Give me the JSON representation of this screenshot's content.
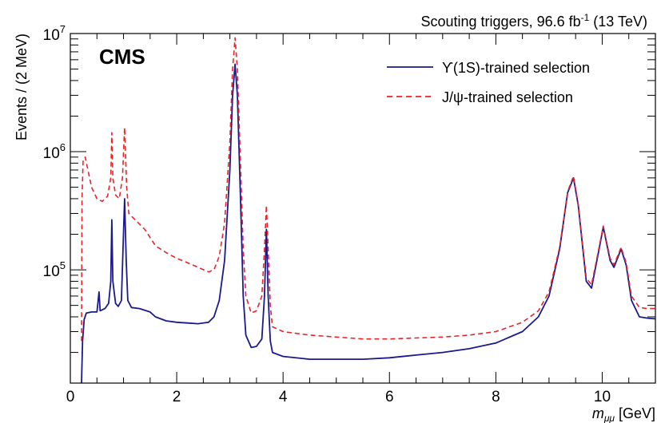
{
  "header": {
    "right_text": "Scouting triggers, 96.6 fb",
    "right_superscript": "-1",
    "right_suffix": " (13 TeV)"
  },
  "experiment_label": "CMS",
  "colors": {
    "upsilon": "#1a1a8c",
    "jpsi": "#e8242a",
    "axis": "#000000"
  },
  "chart_data": {
    "type": "line",
    "xlabel": "m_μμ [GeV]",
    "ylabel": "Events / (2 MeV)",
    "x_ticks": [
      "0",
      "2",
      "4",
      "6",
      "8",
      "10"
    ],
    "y_ticks": [
      "10^5",
      "10^6",
      "10^7"
    ],
    "xlim": [
      0,
      11
    ],
    "ylim": [
      11000,
      10000000
    ],
    "yscale": "log",
    "legend": {
      "position": "top-right"
    },
    "series": [
      {
        "name": "ϒ(1S)-trained selection",
        "style": "solid",
        "points": [
          [
            0.21,
            11000
          ],
          [
            0.23,
            25000
          ],
          [
            0.26,
            38000
          ],
          [
            0.3,
            43000
          ],
          [
            0.4,
            44000
          ],
          [
            0.5,
            44000
          ],
          [
            0.54,
            65000
          ],
          [
            0.56,
            45000
          ],
          [
            0.65,
            47000
          ],
          [
            0.72,
            52000
          ],
          [
            0.76,
            80000
          ],
          [
            0.78,
            265000
          ],
          [
            0.8,
            80000
          ],
          [
            0.85,
            52000
          ],
          [
            0.9,
            49000
          ],
          [
            0.96,
            55000
          ],
          [
            0.99,
            150000
          ],
          [
            1.02,
            400000
          ],
          [
            1.05,
            120000
          ],
          [
            1.08,
            55000
          ],
          [
            1.15,
            48000
          ],
          [
            1.3,
            47000
          ],
          [
            1.5,
            44000
          ],
          [
            1.6,
            40000
          ],
          [
            1.8,
            37000
          ],
          [
            2.0,
            36000
          ],
          [
            2.2,
            35500
          ],
          [
            2.4,
            35000
          ],
          [
            2.6,
            36000
          ],
          [
            2.7,
            40000
          ],
          [
            2.8,
            55000
          ],
          [
            2.9,
            120000
          ],
          [
            3.0,
            700000
          ],
          [
            3.05,
            3000000
          ],
          [
            3.097,
            5500000
          ],
          [
            3.14,
            3000000
          ],
          [
            3.2,
            400000
          ],
          [
            3.25,
            60000
          ],
          [
            3.3,
            28000
          ],
          [
            3.4,
            22000
          ],
          [
            3.5,
            22500
          ],
          [
            3.6,
            26000
          ],
          [
            3.65,
            60000
          ],
          [
            3.686,
            220000
          ],
          [
            3.72,
            60000
          ],
          [
            3.76,
            25000
          ],
          [
            3.8,
            20000
          ],
          [
            4.0,
            18500
          ],
          [
            4.5,
            17500
          ],
          [
            5.0,
            17500
          ],
          [
            5.5,
            17500
          ],
          [
            6.0,
            18000
          ],
          [
            6.5,
            19000
          ],
          [
            7.0,
            20000
          ],
          [
            7.5,
            21500
          ],
          [
            8.0,
            24000
          ],
          [
            8.5,
            30000
          ],
          [
            8.8,
            40000
          ],
          [
            9.0,
            60000
          ],
          [
            9.2,
            150000
          ],
          [
            9.35,
            450000
          ],
          [
            9.46,
            600000
          ],
          [
            9.55,
            350000
          ],
          [
            9.7,
            80000
          ],
          [
            9.8,
            70000
          ],
          [
            9.9,
            120000
          ],
          [
            10.02,
            230000
          ],
          [
            10.15,
            120000
          ],
          [
            10.22,
            105000
          ],
          [
            10.355,
            150000
          ],
          [
            10.45,
            110000
          ],
          [
            10.55,
            55000
          ],
          [
            10.7,
            40000
          ],
          [
            10.85,
            39000
          ],
          [
            11.0,
            38500
          ]
        ]
      },
      {
        "name": "J/ψ-trained selection",
        "style": "dashed",
        "points": [
          [
            0.21,
            25000
          ],
          [
            0.22,
            400000
          ],
          [
            0.24,
            850000
          ],
          [
            0.28,
            900000
          ],
          [
            0.33,
            700000
          ],
          [
            0.4,
            500000
          ],
          [
            0.5,
            400000
          ],
          [
            0.6,
            380000
          ],
          [
            0.7,
            420000
          ],
          [
            0.76,
            600000
          ],
          [
            0.78,
            1450000
          ],
          [
            0.8,
            600000
          ],
          [
            0.85,
            430000
          ],
          [
            0.92,
            400000
          ],
          [
            0.98,
            600000
          ],
          [
            1.02,
            1600000
          ],
          [
            1.06,
            500000
          ],
          [
            1.1,
            300000
          ],
          [
            1.2,
            270000
          ],
          [
            1.4,
            220000
          ],
          [
            1.6,
            160000
          ],
          [
            1.8,
            140000
          ],
          [
            2.0,
            125000
          ],
          [
            2.2,
            115000
          ],
          [
            2.4,
            105000
          ],
          [
            2.6,
            96000
          ],
          [
            2.7,
            100000
          ],
          [
            2.8,
            130000
          ],
          [
            2.9,
            250000
          ],
          [
            3.0,
            1200000
          ],
          [
            3.05,
            5000000
          ],
          [
            3.097,
            9200000
          ],
          [
            3.14,
            5000000
          ],
          [
            3.2,
            800000
          ],
          [
            3.25,
            150000
          ],
          [
            3.3,
            60000
          ],
          [
            3.4,
            43000
          ],
          [
            3.5,
            45000
          ],
          [
            3.6,
            60000
          ],
          [
            3.65,
            150000
          ],
          [
            3.686,
            350000
          ],
          [
            3.72,
            150000
          ],
          [
            3.76,
            50000
          ],
          [
            3.8,
            33000
          ],
          [
            4.0,
            30000
          ],
          [
            4.5,
            28000
          ],
          [
            5.0,
            27000
          ],
          [
            5.5,
            26000
          ],
          [
            6.0,
            26000
          ],
          [
            6.5,
            26500
          ],
          [
            7.0,
            27000
          ],
          [
            7.5,
            28000
          ],
          [
            8.0,
            30000
          ],
          [
            8.5,
            36000
          ],
          [
            8.8,
            45000
          ],
          [
            9.0,
            65000
          ],
          [
            9.2,
            155000
          ],
          [
            9.35,
            460000
          ],
          [
            9.46,
            620000
          ],
          [
            9.55,
            360000
          ],
          [
            9.7,
            85000
          ],
          [
            9.8,
            75000
          ],
          [
            9.9,
            125000
          ],
          [
            10.02,
            235000
          ],
          [
            10.15,
            125000
          ],
          [
            10.22,
            110000
          ],
          [
            10.355,
            155000
          ],
          [
            10.45,
            115000
          ],
          [
            10.55,
            60000
          ],
          [
            10.7,
            48000
          ],
          [
            10.85,
            47000
          ],
          [
            11.0,
            47000
          ]
        ]
      }
    ]
  }
}
